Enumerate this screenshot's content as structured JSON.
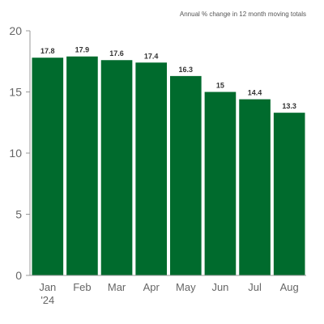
{
  "chart_data": {
    "type": "bar",
    "title": "",
    "subtitle": "Annual % change in 12 month moving totals",
    "xlabel": "",
    "ylabel": "",
    "categories": [
      "Jan\n'24",
      "Feb",
      "Mar",
      "Apr",
      "May",
      "Jun",
      "Jul",
      "Aug"
    ],
    "values": [
      17.8,
      17.9,
      17.6,
      17.4,
      16.3,
      15,
      14.4,
      13.3
    ],
    "data_labels": [
      "17.8",
      "17.9",
      "17.6",
      "17.4",
      "16.3",
      "15",
      "14.4",
      "13.3"
    ],
    "ylim": [
      0,
      20
    ],
    "yticks": [
      0,
      5,
      10,
      15,
      20
    ],
    "ytick_labels": [
      "0",
      "5",
      "10",
      "15",
      "20"
    ],
    "grid": false,
    "legend": "none",
    "bar_color": "#006b2d"
  }
}
